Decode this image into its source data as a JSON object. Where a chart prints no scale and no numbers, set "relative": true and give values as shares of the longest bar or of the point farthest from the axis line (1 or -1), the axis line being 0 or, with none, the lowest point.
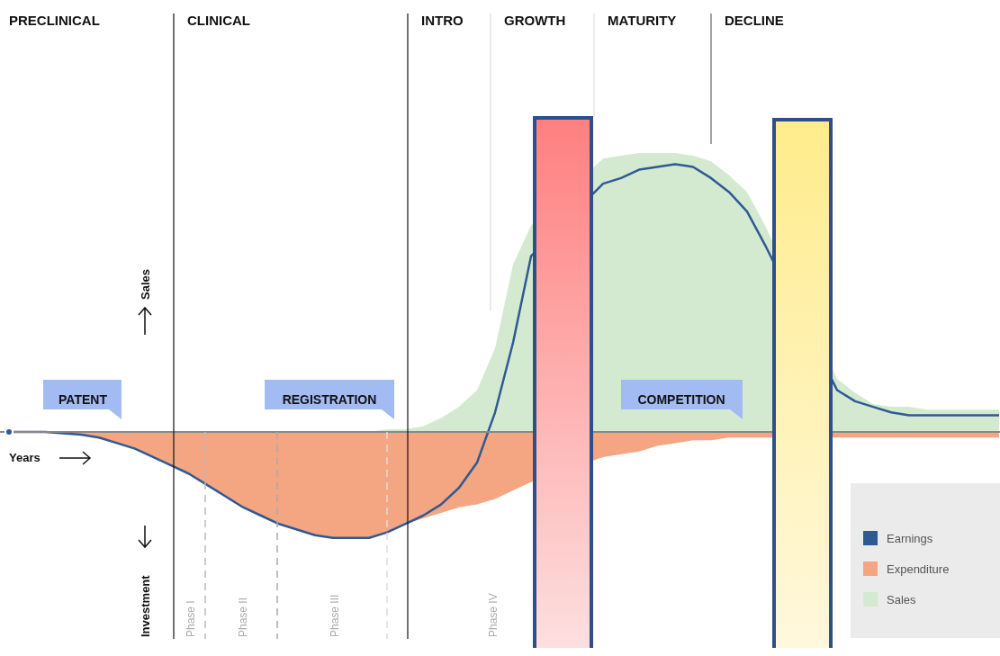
{
  "chart_data": {
    "type": "area",
    "relative": true,
    "legend": "bottom right",
    "categories": [
      null,
      null,
      null,
      null,
      null,
      null,
      null,
      null,
      null,
      null,
      null,
      null,
      null,
      null,
      null,
      null,
      null,
      null,
      null,
      null,
      null,
      null,
      null,
      null,
      null,
      null,
      null,
      null,
      null,
      null,
      null,
      null,
      null,
      null,
      null,
      null,
      null,
      null,
      null,
      null,
      null,
      null,
      null,
      null,
      null,
      null,
      null,
      null,
      null,
      null,
      null,
      null,
      null,
      null,
      null,
      null
    ],
    "series": [
      {
        "name": "Sales",
        "color": "#d4ead0",
        "values": [
          0,
          0,
          0,
          0,
          0,
          0,
          0,
          0,
          0,
          0,
          0,
          0,
          0,
          0,
          0,
          0,
          0,
          0,
          0,
          0,
          0,
          0.01,
          0.01,
          0.02,
          0.05,
          0.09,
          0.15,
          0.3,
          0.6,
          0.74,
          null,
          null,
          null,
          0.98,
          0.99,
          1,
          1,
          1,
          0.99,
          0.97,
          0.92,
          0.86,
          0.74,
          null,
          null,
          null,
          0.19,
          0.14,
          0.1,
          0.09,
          0.09,
          0.08,
          0.08,
          0.08,
          0.08,
          0.08
        ]
      },
      {
        "name": "Expenditure",
        "color": "#f4a582",
        "values": [
          0,
          0,
          0,
          -0.005,
          -0.01,
          -0.02,
          -0.04,
          -0.06,
          -0.09,
          -0.12,
          -0.15,
          -0.19,
          -0.23,
          -0.27,
          -0.3,
          -0.33,
          -0.35,
          -0.37,
          -0.38,
          -0.38,
          -0.38,
          -0.36,
          -0.33,
          -0.31,
          -0.29,
          -0.27,
          -0.26,
          -0.24,
          -0.21,
          -0.18,
          null,
          null,
          null,
          -0.09,
          -0.08,
          -0.07,
          -0.05,
          -0.04,
          -0.03,
          -0.03,
          -0.02,
          -0.02,
          -0.02,
          null,
          null,
          null,
          -0.02,
          -0.02,
          -0.02,
          -0.02,
          -0.02,
          -0.02,
          -0.02,
          -0.02,
          -0.02,
          -0.02
        ]
      },
      {
        "name": "Earnings",
        "type": "line",
        "color": "#2e5a94",
        "values": [
          0,
          0,
          0,
          -0.005,
          -0.01,
          -0.02,
          -0.04,
          -0.06,
          -0.09,
          -0.12,
          -0.15,
          -0.19,
          -0.23,
          -0.27,
          -0.3,
          -0.33,
          -0.35,
          -0.37,
          -0.38,
          -0.38,
          -0.38,
          -0.36,
          -0.33,
          -0.3,
          -0.26,
          -0.2,
          -0.11,
          0.07,
          0.32,
          0.63,
          null,
          null,
          null,
          0.89,
          0.91,
          0.94,
          0.95,
          0.96,
          0.95,
          0.91,
          0.86,
          0.79,
          0.67,
          null,
          null,
          null,
          0.15,
          0.11,
          0.09,
          0.07,
          0.06,
          0.06,
          0.06,
          0.06,
          0.06,
          0.06
        ]
      }
    ],
    "annotations": [
      "PRECLINICAL",
      "CLINICAL",
      "INTRO",
      "GROWTH",
      "MATURITY",
      "DECLINE",
      "PATENT",
      "REGISTRATION",
      "COMPETITION",
      "Phase I",
      "Phase II",
      "Phase III",
      "Phase IV",
      "Sales",
      "Years",
      "Investment"
    ]
  }
}
